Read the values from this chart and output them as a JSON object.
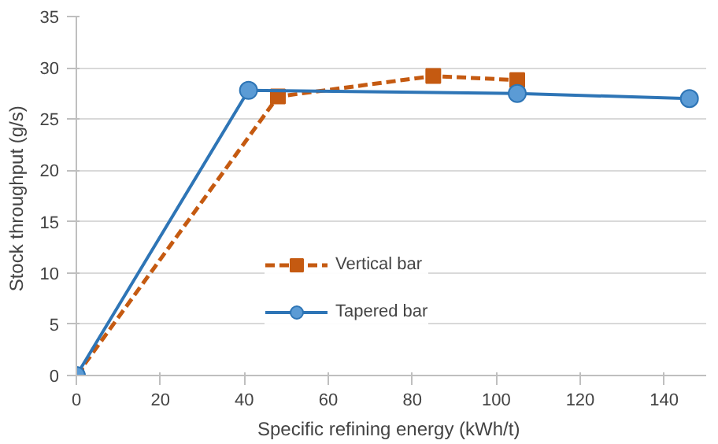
{
  "chart_data": {
    "type": "line",
    "xlabel": "Specific refining  energy (kWh/t)",
    "ylabel": "Stock throughput  (g/s)",
    "xlim": [
      0,
      150
    ],
    "xticks": [
      0,
      20,
      40,
      60,
      80,
      100,
      120,
      140
    ],
    "ylim": [
      0,
      35
    ],
    "yticks": [
      0,
      5,
      10,
      15,
      20,
      25,
      30,
      35
    ],
    "grid": "y",
    "legend": "bottom",
    "series": [
      {
        "name": "Vertical bar",
        "color": "#c55a11",
        "x": [
          0,
          48,
          85,
          105
        ],
        "values": [
          0,
          27.2,
          29.2,
          28.8
        ],
        "marker": "square",
        "line_style": "dashed"
      },
      {
        "name": "Tapered bar",
        "color": "#2e75b6",
        "x": [
          0,
          41,
          105,
          146
        ],
        "values": [
          0,
          27.8,
          27.5,
          27.0
        ],
        "marker": "circle",
        "line_style": "solid"
      }
    ]
  }
}
